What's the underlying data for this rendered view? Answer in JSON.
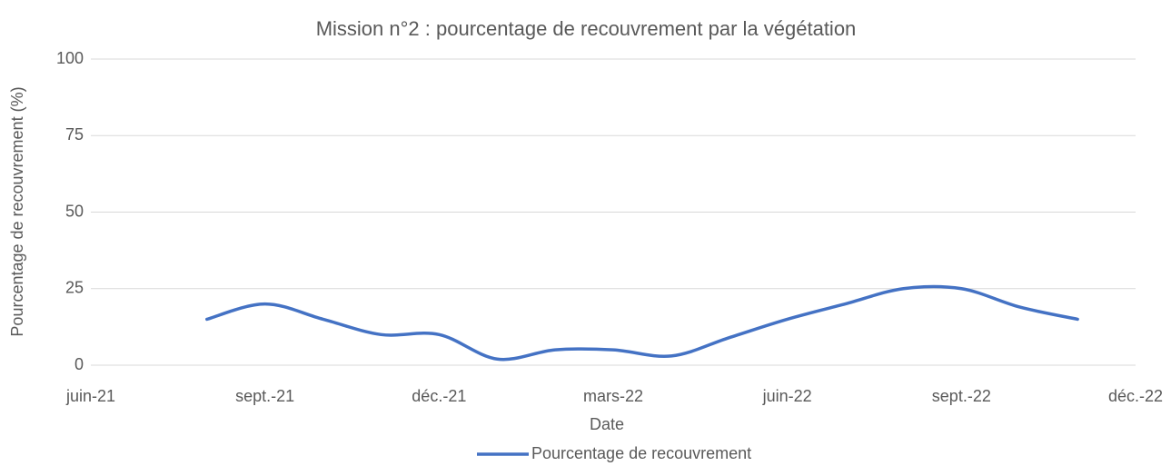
{
  "chart_data": {
    "type": "line",
    "title": "Mission n°2 : pourcentage de recouvrement par la végétation",
    "x_label": "Date",
    "y_label": "Pourcentage de recouvrement (%)",
    "x": [
      "2021-08",
      "2021-09",
      "2021-10",
      "2021-11",
      "2021-12",
      "2022-01",
      "2022-02",
      "2022-03",
      "2022-04",
      "2022-05",
      "2022-06",
      "2022-07",
      "2022-08",
      "2022-09",
      "2022-10",
      "2022-11"
    ],
    "series": [
      {
        "name": "Pourcentage de recouvrement",
        "color": "#4472c4",
        "values": [
          15,
          20,
          15,
          10,
          10,
          2,
          5,
          5,
          3,
          9,
          15,
          20,
          25,
          25,
          19,
          15
        ]
      }
    ],
    "xlim": [
      "2021-06",
      "2022-12"
    ],
    "xticks": [
      {
        "value": "2021-06",
        "label": "juin-21"
      },
      {
        "value": "2021-09",
        "label": "sept.-21"
      },
      {
        "value": "2021-12",
        "label": "déc.-21"
      },
      {
        "value": "2022-03",
        "label": "mars-22"
      },
      {
        "value": "2022-06",
        "label": "juin-22"
      },
      {
        "value": "2022-09",
        "label": "sept.-22"
      },
      {
        "value": "2022-12",
        "label": "déc.-22"
      }
    ],
    "ylim": [
      0,
      100
    ],
    "yticks": [
      0,
      25,
      50,
      75,
      100
    ],
    "grid": true,
    "legend": "bottom"
  }
}
